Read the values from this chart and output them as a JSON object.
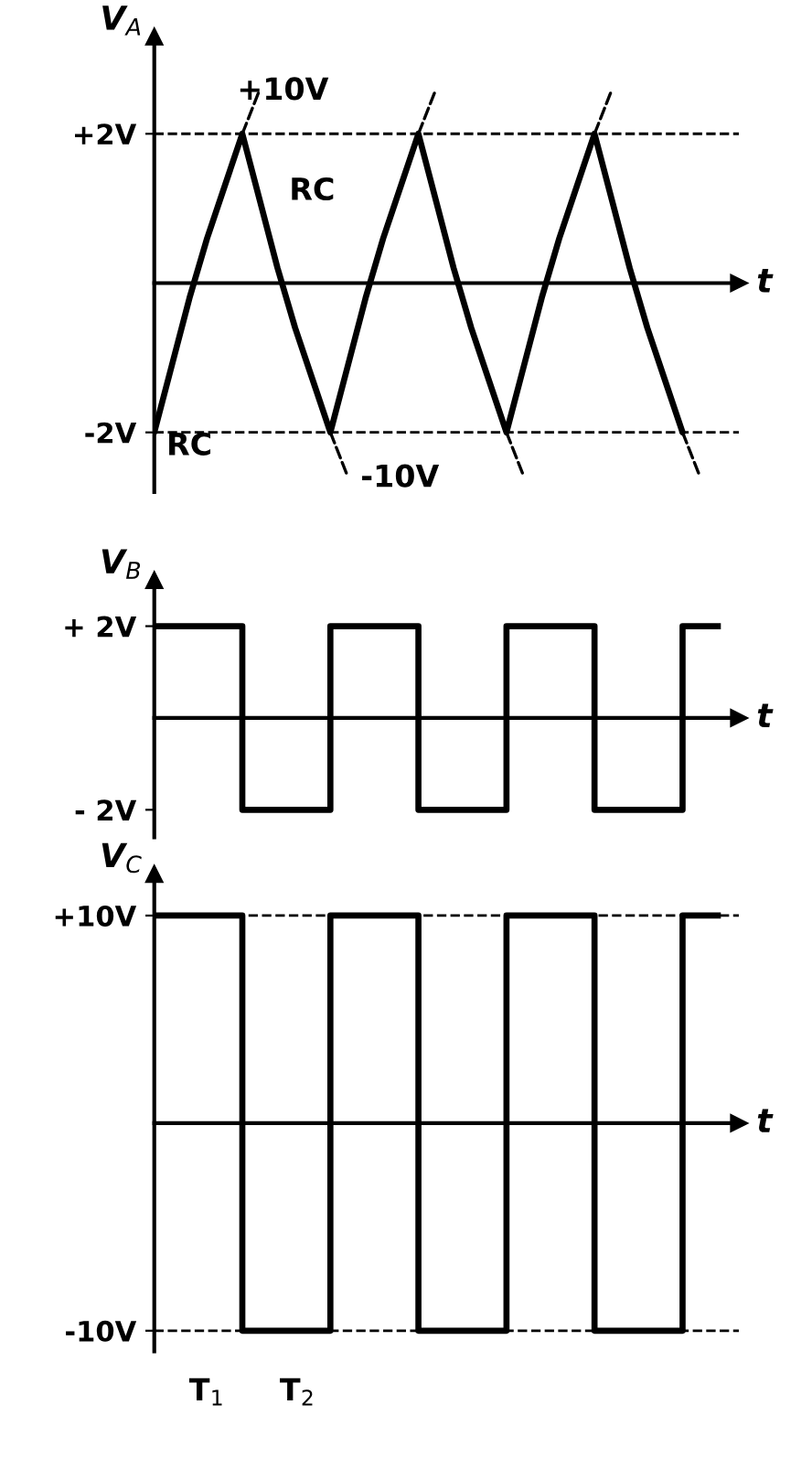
{
  "chart_data": [
    {
      "type": "line",
      "ylabel": "V$_{A}$",
      "xlabel": "t",
      "tick_labels": "y",
      "categories": [
        null,
        null,
        null,
        null,
        null,
        null,
        null,
        null,
        null,
        null,
        null,
        null,
        null,
        null,
        null,
        null,
        null,
        null,
        null,
        null,
        null,
        null,
        null,
        null,
        null,
        null,
        null,
        null,
        null,
        null,
        null,
        null,
        null
      ],
      "ylim": [
        -2.8,
        3.3
      ],
      "yticks": [
        {
          "value": 2,
          "label": "+2V"
        },
        {
          "value": -2,
          "label": "-2V"
        }
      ],
      "series": [
        {
          "color": "#000000",
          "line_style": "solid",
          "values": [
            -2,
            -1.1,
            -0.2,
            0.6,
            1.3,
            2,
            1.1,
            0.2,
            -0.6,
            -1.3,
            -2,
            -1.1,
            -0.2,
            0.6,
            1.3,
            2,
            1.1,
            0.2,
            -0.6,
            -1.3,
            -2,
            -1.1,
            -0.2,
            0.6,
            1.3,
            2,
            1.1,
            0.2,
            -0.6,
            -1.3,
            -2,
            null,
            null
          ]
        },
        {
          "color": "#000000",
          "line_style": "dashed",
          "values": [
            null,
            null,
            null,
            null,
            null,
            2,
            2.6,
            null,
            null,
            null,
            -2,
            -2.6,
            null,
            null,
            null,
            2,
            2.6,
            null,
            null,
            null,
            -2,
            -2.6,
            null,
            null,
            null,
            2,
            2.6,
            null,
            null,
            null,
            -2,
            -2.6,
            null
          ]
        }
      ],
      "ref_lines": [
        {
          "axis": "y",
          "value": 2,
          "line_style": "dashed"
        },
        {
          "axis": "y",
          "value": -2,
          "line_style": "dashed"
        }
      ],
      "annotations": [
        "+10V",
        "RC",
        "RC",
        "-10V"
      ]
    },
    {
      "type": "step",
      "ylabel": "V$_{B}$",
      "xlabel": "t",
      "tick_labels": "y",
      "categories": [
        null,
        null,
        null,
        null,
        null,
        null,
        null,
        null,
        null,
        null,
        null,
        null,
        null,
        null,
        null,
        null,
        null,
        null,
        null,
        null,
        null,
        null,
        null,
        null,
        null,
        null,
        null,
        null,
        null,
        null,
        null,
        null,
        null
      ],
      "ylim": [
        -2.6,
        3.0
      ],
      "yticks": [
        {
          "value": 2,
          "label": "+ 2V"
        },
        {
          "value": -2,
          "label": "- 2V"
        }
      ],
      "series": [
        {
          "color": "#000000",
          "line_style": "solid",
          "values": [
            2,
            2,
            2,
            2,
            2,
            -2,
            -2,
            -2,
            -2,
            -2,
            2,
            2,
            2,
            2,
            2,
            -2,
            -2,
            -2,
            -2,
            -2,
            2,
            2,
            2,
            2,
            2,
            -2,
            -2,
            -2,
            -2,
            -2,
            2,
            2,
            2
          ]
        }
      ]
    },
    {
      "type": "step",
      "ylabel": "V$_{C}$",
      "xlabel": "t",
      "tick_labels": "y",
      "categories": [
        null,
        null,
        null,
        null,
        null,
        null,
        null,
        null,
        null,
        null,
        null,
        null,
        null,
        null,
        null,
        null,
        null,
        null,
        null,
        null,
        null,
        null,
        null,
        null,
        null,
        null,
        null,
        null,
        null,
        null,
        null,
        null,
        null
      ],
      "ylim": [
        -11,
        12
      ],
      "yticks": [
        {
          "value": 10,
          "label": "+10V"
        },
        {
          "value": -10,
          "label": "-10V"
        }
      ],
      "series": [
        {
          "color": "#000000",
          "line_style": "solid",
          "values": [
            10,
            10,
            10,
            10,
            10,
            -10,
            -10,
            -10,
            -10,
            -10,
            10,
            10,
            10,
            10,
            10,
            -10,
            -10,
            -10,
            -10,
            -10,
            10,
            10,
            10,
            10,
            10,
            -10,
            -10,
            -10,
            -10,
            -10,
            10,
            10,
            10
          ]
        }
      ],
      "ref_lines": [
        {
          "axis": "y",
          "value": 10,
          "line_style": "dashed"
        },
        {
          "axis": "y",
          "value": -10,
          "line_style": "dashed"
        }
      ],
      "annotations": [
        "T$_{1}$",
        "T$_{2}$"
      ]
    }
  ]
}
